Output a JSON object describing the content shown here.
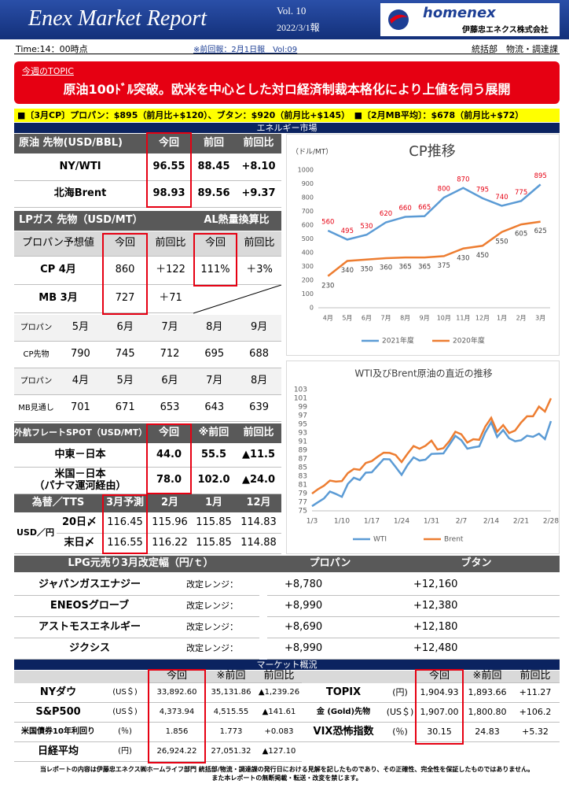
{
  "header": {
    "title": "Enex Market Report",
    "vol": "Vol. 10",
    "date": "2022/3/1報",
    "logo": "homenex",
    "company": "伊藤忠エネクス株式会社"
  },
  "info": {
    "time": "Time:14：00時点",
    "previous": "※前回報：2月1日報　Vol:09",
    "dept": "統括部　物流・調達課"
  },
  "topic": {
    "label": "今週のTOPIC",
    "headline": "原油100ﾄﾞﾙ突破。欧米を中心とした対ロ経済制裁本格化により上値を伺う展開"
  },
  "summary": "■〔3月CP〕プロパン：$895（前月比+$120）、ブタン：$920（前月比+$145）　■〔2月MB平均〕：$678（前月比+$72）",
  "energy": {
    "title": "エネルギー市場",
    "crude": {
      "header": [
        "原油 先物(USD/BBL)",
        "今回",
        "前回",
        "前回比"
      ],
      "rows": [
        [
          "NY/WTI",
          "96.55",
          "88.45",
          "+8.10"
        ],
        [
          "北海Brent",
          "98.93",
          "89.56",
          "+9.37"
        ]
      ]
    },
    "lpg": {
      "header": [
        "LPガス 先物（USD/MT）",
        "AL熱量換算比"
      ],
      "subheader": [
        "プロパン予想値",
        "今回",
        "前回比",
        "今回",
        "前回比"
      ],
      "rows": [
        [
          "CP 4月",
          "860",
          "＋122",
          "111%",
          "＋3%"
        ],
        [
          "MB 3月",
          "727",
          "＋71"
        ]
      ],
      "forward": [
        [
          "プロパン",
          "5月",
          "6月",
          "7月",
          "8月",
          "9月"
        ],
        [
          "CP先物",
          "790",
          "745",
          "712",
          "695",
          "688"
        ],
        [
          "プロパン",
          "4月",
          "5月",
          "6月",
          "7月",
          "8月"
        ],
        [
          "MB見通し",
          "701",
          "671",
          "653",
          "643",
          "639"
        ]
      ]
    },
    "freight": {
      "header": [
        "外航フレートSPOT（USD/MT）",
        "今回",
        "※前回",
        "前回比"
      ],
      "rows": [
        [
          "中東－日本",
          "44.0",
          "55.5",
          "▲11.5"
        ],
        [
          "米国－日本\n（パナマ運河経由）",
          "78.0",
          "102.0",
          "▲24.0"
        ]
      ]
    },
    "fx": {
      "header": [
        "為替／TTS",
        "3月予測",
        "2月",
        "1月",
        "12月"
      ],
      "unit": "USD／円",
      "rows": [
        [
          "20日〆",
          "116.45",
          "115.96",
          "115.85",
          "114.83"
        ],
        [
          "末日〆",
          "116.55",
          "116.22",
          "115.85",
          "114.88"
        ]
      ]
    }
  },
  "revision": {
    "header": [
      "LPG元売り3月改定幅（円/ｔ）",
      "プロパン",
      "ブタン"
    ],
    "range_label": "改定レンジ：",
    "rows": [
      [
        "ジャパンガスエナジー",
        "+8,780",
        "+12,160"
      ],
      [
        "ENEOSグローブ",
        "+8,990",
        "+12,380"
      ],
      [
        "アストモスエネルギー",
        "+8,690",
        "+12,180"
      ],
      [
        "ジクシス",
        "+8,990",
        "+12,480"
      ]
    ]
  },
  "market": {
    "title": "マーケット概況",
    "header": [
      "今回",
      "※前回",
      "前回比"
    ],
    "left": [
      [
        "NYダウ",
        "(US＄)",
        "33,892.60",
        "35,131.86",
        "▲1,239.26"
      ],
      [
        "S&P500",
        "(US＄)",
        "4,373.94",
        "4,515.55",
        "▲141.61"
      ],
      [
        "米国債券10年利回り",
        "(％)",
        "1.856",
        "1.773",
        "+0.083"
      ],
      [
        "日経平均",
        "(円)",
        "26,924.22",
        "27,051.32",
        "▲127.10"
      ]
    ],
    "right": [
      [
        "TOPIX",
        "(円)",
        "1,904.93",
        "1,893.66",
        "+11.27"
      ],
      [
        "金 (Gold)先物",
        "(US＄)",
        "1,907.00",
        "1,800.80",
        "+106.2"
      ],
      [
        "VIX恐怖指数",
        "(％)",
        "30.15",
        "24.83",
        "+5.32"
      ]
    ]
  },
  "footer": [
    "当レポートの内容は伊藤忠エネクス㈱ホームライフ部門 統括部/物流・調達課の発行日における見解を記したものであり、その正確性、完全性を保証したものではありません。",
    "また本レポートの無断掲載・転送・改変を禁じます。"
  ],
  "chart_data": [
    {
      "type": "line",
      "title": "CP推移",
      "y_label": "（ドル/MT）",
      "categories": [
        "4月",
        "5月",
        "6月",
        "7月",
        "8月",
        "9月",
        "10月",
        "11月",
        "12月",
        "1月",
        "2月",
        "3月"
      ],
      "series": [
        {
          "name": "2021年度",
          "color": "#5b9bd5",
          "values": [
            560,
            495,
            530,
            620,
            660,
            665,
            800,
            870,
            795,
            740,
            775,
            895
          ]
        },
        {
          "name": "2020年度",
          "color": "#ed7d31",
          "values": [
            230,
            340,
            350,
            360,
            365,
            365,
            375,
            430,
            450,
            550,
            605,
            625
          ]
        }
      ],
      "ylim": [
        0,
        1000
      ],
      "yticks": [
        0,
        100,
        200,
        300,
        400,
        500,
        600,
        700,
        800,
        900,
        1000
      ],
      "grid": false,
      "data_labels": true,
      "legend": "bottom"
    },
    {
      "type": "line",
      "title": "WTI及びBrent原油の直近の推移",
      "categories": [
        "1/3",
        null,
        null,
        null,
        null,
        "1/10",
        null,
        null,
        null,
        null,
        "1/17",
        null,
        null,
        null,
        null,
        "1/24",
        null,
        null,
        null,
        null,
        "1/31",
        null,
        null,
        null,
        null,
        "2/7",
        null,
        null,
        null,
        null,
        "2/14",
        null,
        null,
        null,
        null,
        "2/21",
        null,
        null,
        null,
        null,
        "2/28"
      ],
      "series": [
        {
          "name": "WTI",
          "color": "#5b9bd5",
          "values": [
            76.08,
            76.99,
            77.85,
            79.46,
            78.9,
            78.23,
            81.22,
            82.64,
            82.12,
            83.82,
            83.9,
            85.43,
            86.96,
            86.9,
            85.14,
            83.31,
            85.6,
            87.35,
            86.61,
            86.82,
            88.15,
            88.2,
            88.26,
            90.27,
            92.31,
            91.32,
            89.36,
            89.66,
            89.88,
            93.1,
            95.46,
            92.07,
            93.66,
            91.76,
            91.07,
            91.3,
            92.35,
            92.1,
            92.81,
            91.59,
            95.72
          ]
        },
        {
          "name": "Brent",
          "color": "#ed7d31",
          "values": [
            78.98,
            80.0,
            80.8,
            81.99,
            81.75,
            81.87,
            83.72,
            84.67,
            84.47,
            86.06,
            86.48,
            87.51,
            88.44,
            88.38,
            87.89,
            86.27,
            88.2,
            89.96,
            89.34,
            90.03,
            91.21,
            89.16,
            89.47,
            91.11,
            93.27,
            92.69,
            90.78,
            91.55,
            91.41,
            94.44,
            96.48,
            93.28,
            94.81,
            92.97,
            93.54,
            95.39,
            96.84,
            96.84,
            99.08,
            97.93,
            100.99
          ]
        }
      ],
      "ylim": [
        75,
        103
      ],
      "yticks": [
        75,
        77,
        79,
        81,
        83,
        85,
        87,
        89,
        91,
        93,
        95,
        97,
        99,
        101,
        103
      ],
      "grid": false,
      "data_labels": false,
      "legend": "bottom"
    }
  ]
}
